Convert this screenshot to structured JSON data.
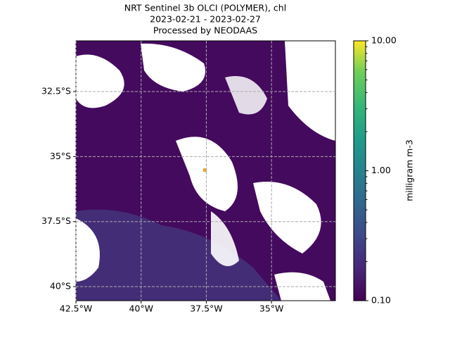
{
  "chart_data": {
    "type": "map",
    "title": [
      "NRT Sentinel 3b OLCI (POLYMER), chl",
      "2023-02-21 - 2023-02-27",
      "Processed by NEODAAS"
    ],
    "xlim": [
      -42.5,
      -32.55
    ],
    "ylim": [
      -40.54,
      -30.55
    ],
    "xticks": [
      {
        "value": -42.5,
        "label": "42.5°W"
      },
      {
        "value": -40,
        "label": "40°W"
      },
      {
        "value": -37.5,
        "label": "37.5°W"
      },
      {
        "value": -35,
        "label": "35°W"
      }
    ],
    "yticks": [
      {
        "value": -32.5,
        "label": "32.5°S"
      },
      {
        "value": -35,
        "label": "35°S"
      },
      {
        "value": -37.5,
        "label": "37.5°S"
      },
      {
        "value": -40,
        "label": "40°S"
      }
    ],
    "grid": true,
    "colorbar": {
      "label": "milligram m-3",
      "scale": "log",
      "lim": [
        0.1,
        10
      ],
      "ticks": [
        {
          "value": 0.1,
          "label": "0.10"
        },
        {
          "value": 1,
          "label": "1.00"
        },
        {
          "value": 10,
          "label": "10.00"
        }
      ],
      "minor_ticks": [
        0.2,
        0.3,
        0.4,
        0.5,
        0.6,
        0.7,
        0.8,
        0.9,
        2,
        3,
        4,
        5,
        6,
        7,
        8,
        9
      ]
    }
  }
}
